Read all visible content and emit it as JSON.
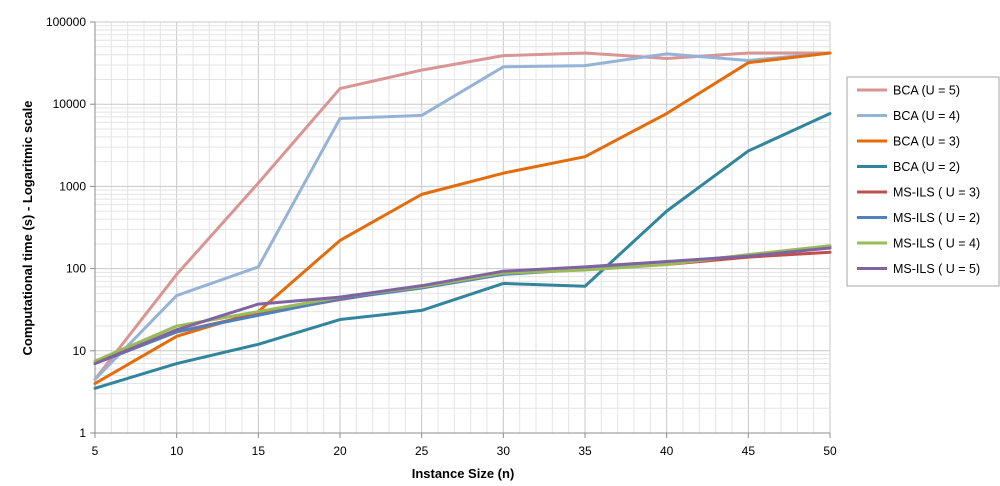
{
  "chart_data": {
    "type": "line",
    "xlabel": "Instance Size (n)",
    "ylabel": "Computational time (s) - Logaritmic scale",
    "yscale": "log",
    "ylim": [
      1,
      100000
    ],
    "xlim": [
      5,
      50
    ],
    "grid": true,
    "legend_position": "right",
    "x": [
      5,
      10,
      15,
      20,
      25,
      30,
      35,
      40,
      45,
      50
    ],
    "x_tick_labels": [
      "5",
      "10",
      "15",
      "20",
      "25",
      "30",
      "35",
      "40",
      "45",
      "50"
    ],
    "y_tick_labels": [
      "1",
      "10",
      "100",
      "1000",
      "10000",
      "100000"
    ],
    "series": [
      {
        "name": "BCA (U = 5)",
        "color": "#d99594",
        "values": [
          4.5,
          85,
          1100,
          15500,
          26000,
          39000,
          42000,
          36000,
          42000,
          42000
        ]
      },
      {
        "name": "BCA (U = 4)",
        "color": "#95b3d7",
        "values": [
          4.5,
          47,
          105,
          6700,
          7300,
          28500,
          29500,
          41000,
          34000,
          42000
        ]
      },
      {
        "name": "BCA (U = 3)",
        "color": "#e46c0a",
        "values": [
          4,
          15,
          30,
          220,
          800,
          1450,
          2300,
          7700,
          32000,
          42000
        ]
      },
      {
        "name": "BCA (U = 2)",
        "color": "#31859c",
        "values": [
          3.5,
          7,
          12,
          24,
          31,
          66,
          61,
          500,
          2700,
          7700
        ]
      },
      {
        "name": "MS-ILS ( U = 3)",
        "color": "#c0504d",
        "values": [
          7,
          17,
          28,
          42,
          60,
          88,
          98,
          112,
          138,
          158
        ]
      },
      {
        "name": "MS-ILS ( U = 2)",
        "color": "#4f81bd",
        "values": [
          7,
          17,
          27,
          43,
          58,
          85,
          98,
          118,
          145,
          185
        ]
      },
      {
        "name": "MS-ILS ( U = 4)",
        "color": "#9bbb59",
        "values": [
          7.5,
          20,
          30,
          45,
          60,
          88,
          96,
          112,
          148,
          190
        ]
      },
      {
        "name": "MS-ILS ( U = 5)",
        "color": "#8064a2",
        "values": [
          7,
          18,
          37,
          45,
          62,
          93,
          105,
          122,
          142,
          178
        ]
      }
    ]
  }
}
